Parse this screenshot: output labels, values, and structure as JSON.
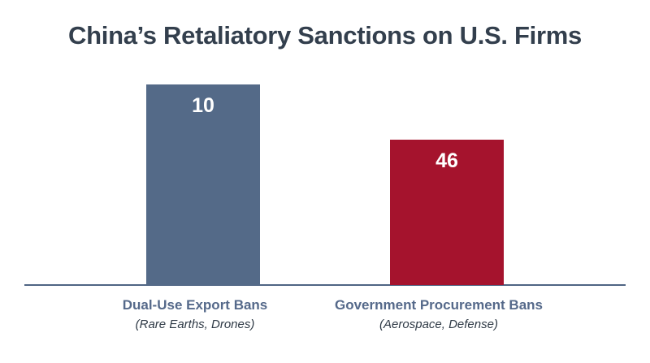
{
  "chart_data": {
    "type": "bar",
    "title": "China’s Retaliatory Sanctions on U.S. Firms",
    "categories": [
      "Dual-Use Export Bans",
      "Government Procurement Bans"
    ],
    "category_sublabels": [
      "(Rare Earths, Drones)",
      "(Aerospace, Defense)"
    ],
    "values": [
      10,
      46
    ],
    "data_labels": [
      "10",
      "46"
    ],
    "colors": [
      "#546a88",
      "#a5132d"
    ],
    "grid": false,
    "legend": "none",
    "xlabel": "",
    "ylabel": ""
  }
}
